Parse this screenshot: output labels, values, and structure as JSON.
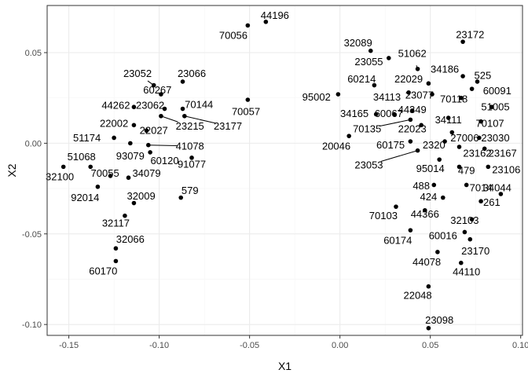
{
  "chart_data": {
    "type": "scatter",
    "xlabel": "X1",
    "ylabel": "X2",
    "xlim": [
      -0.162,
      0.101
    ],
    "ylim": [
      -0.106,
      0.076
    ],
    "x_ticks": [
      -0.15,
      -0.1,
      -0.05,
      0.0,
      0.05,
      0.1
    ],
    "x_tick_labels": [
      "-0.15",
      "-0.10",
      "-0.05",
      "0.00",
      "0.05",
      "0.10"
    ],
    "y_ticks": [
      0.05,
      0.0,
      -0.05,
      -0.1
    ],
    "y_tick_labels": [
      "0.05",
      "0.00",
      "-0.05",
      "-0.10"
    ],
    "grid": true,
    "theme": "bw",
    "colors": {
      "point": "#000000",
      "grid_major": "#ebebeb",
      "grid_minor": "#f5f5f5",
      "panel_border": "#333333"
    },
    "points": [
      {
        "label": "44196",
        "x": -0.041,
        "y": 0.067,
        "lx": -0.036,
        "ly": 0.0705
      },
      {
        "label": "70056",
        "x": -0.051,
        "y": 0.065,
        "lx": -0.059,
        "ly": 0.0595
      },
      {
        "label": "23172",
        "x": 0.068,
        "y": 0.056,
        "lx": 0.072,
        "ly": 0.06
      },
      {
        "label": "32089",
        "x": 0.017,
        "y": 0.051,
        "lx": 0.01,
        "ly": 0.0555
      },
      {
        "label": "23055",
        "x": 0.027,
        "y": 0.047,
        "lx": 0.016,
        "ly": 0.045
      },
      {
        "label": "51062",
        "x": 0.043,
        "y": 0.041,
        "lx": 0.04,
        "ly": 0.0495
      },
      {
        "label": "34186",
        "x": 0.068,
        "y": 0.037,
        "lx": 0.058,
        "ly": 0.041
      },
      {
        "label": "525",
        "x": 0.076,
        "y": 0.034,
        "lx": 0.079,
        "ly": 0.0375
      },
      {
        "label": "60214",
        "x": 0.019,
        "y": 0.032,
        "lx": 0.012,
        "ly": 0.0355
      },
      {
        "label": "22029",
        "x": 0.049,
        "y": 0.033,
        "lx": 0.038,
        "ly": 0.0355
      },
      {
        "label": "60091",
        "x": 0.073,
        "y": 0.03,
        "lx": 0.087,
        "ly": 0.029
      },
      {
        "label": "95002",
        "x": -0.001,
        "y": 0.027,
        "lx": -0.013,
        "ly": 0.0255
      },
      {
        "label": "34113",
        "x": 0.038,
        "y": 0.028,
        "lx": 0.026,
        "ly": 0.0255
      },
      {
        "label": "23077",
        "x": 0.051,
        "y": 0.027,
        "lx": 0.044,
        "ly": 0.0265
      },
      {
        "label": "70118",
        "x": 0.067,
        "y": 0.025,
        "lx": 0.063,
        "ly": 0.0245
      },
      {
        "label": "51005",
        "x": 0.084,
        "y": 0.02,
        "lx": 0.086,
        "ly": 0.02
      },
      {
        "label": "44349",
        "x": 0.04,
        "y": 0.018,
        "lx": 0.04,
        "ly": 0.0185
      },
      {
        "label": "34165",
        "x": 0.02,
        "y": 0.016,
        "lx": 0.008,
        "ly": 0.0165
      },
      {
        "label": "60067",
        "x": 0.03,
        "y": 0.016,
        "lx": 0.027,
        "ly": 0.0165
      },
      {
        "label": "34111",
        "x": 0.06,
        "y": 0.014,
        "lx": 0.06,
        "ly": 0.013
      },
      {
        "label": "70107",
        "x": 0.078,
        "y": 0.012,
        "lx": 0.083,
        "ly": 0.011
      },
      {
        "label": "70135",
        "x": 0.039,
        "y": 0.013,
        "lx": 0.015,
        "ly": 0.008
      },
      {
        "label": "22023",
        "x": 0.045,
        "y": 0.01,
        "lx": 0.04,
        "ly": 0.008
      },
      {
        "label": "20046",
        "x": 0.005,
        "y": 0.004,
        "lx": -0.002,
        "ly": -0.0015
      },
      {
        "label": "27006",
        "x": 0.062,
        "y": 0.006,
        "lx": 0.069,
        "ly": 0.003
      },
      {
        "label": "23030",
        "x": 0.077,
        "y": 0.003,
        "lx": 0.086,
        "ly": 0.003
      },
      {
        "label": "60175",
        "x": 0.039,
        "y": 0.001,
        "lx": 0.028,
        "ly": -0.001
      },
      {
        "label": "2320",
        "x": 0.058,
        "y": 0.001,
        "lx": 0.052,
        "ly": -0.001
      },
      {
        "label": "23162",
        "x": 0.066,
        "y": -0.002,
        "lx": 0.076,
        "ly": -0.0055
      },
      {
        "label": "23167",
        "x": 0.08,
        "y": -0.003,
        "lx": 0.09,
        "ly": -0.0055
      },
      {
        "label": "23053",
        "x": 0.043,
        "y": -0.004,
        "lx": 0.016,
        "ly": -0.012
      },
      {
        "label": "95014",
        "x": 0.055,
        "y": -0.009,
        "lx": 0.05,
        "ly": -0.014
      },
      {
        "label": "23106",
        "x": 0.082,
        "y": -0.013,
        "lx": 0.092,
        "ly": -0.0145
      },
      {
        "label": "479",
        "x": 0.066,
        "y": -0.013,
        "lx": 0.07,
        "ly": -0.015
      },
      {
        "label": "488",
        "x": 0.052,
        "y": -0.023,
        "lx": 0.045,
        "ly": -0.0235
      },
      {
        "label": "7014",
        "x": 0.07,
        "y": -0.023,
        "lx": 0.078,
        "ly": -0.0245
      },
      {
        "label": "34044",
        "x": 0.089,
        "y": -0.028,
        "lx": 0.087,
        "ly": -0.0245
      },
      {
        "label": "424",
        "x": 0.057,
        "y": -0.03,
        "lx": 0.049,
        "ly": -0.0295
      },
      {
        "label": "261",
        "x": 0.078,
        "y": -0.032,
        "lx": 0.084,
        "ly": -0.0325
      },
      {
        "label": "70103",
        "x": 0.031,
        "y": -0.035,
        "lx": 0.024,
        "ly": -0.04
      },
      {
        "label": "44366",
        "x": 0.047,
        "y": -0.037,
        "lx": 0.047,
        "ly": -0.039
      },
      {
        "label": "32103",
        "x": 0.073,
        "y": -0.042,
        "lx": 0.069,
        "ly": -0.0425
      },
      {
        "label": "60174",
        "x": 0.039,
        "y": -0.048,
        "lx": 0.032,
        "ly": -0.0535
      },
      {
        "label": "60016",
        "x": 0.069,
        "y": -0.049,
        "lx": 0.057,
        "ly": -0.051
      },
      {
        "label": "23170",
        "x": 0.072,
        "y": -0.053,
        "lx": 0.075,
        "ly": -0.0595
      },
      {
        "label": "44078",
        "x": 0.054,
        "y": -0.06,
        "lx": 0.048,
        "ly": -0.0655
      },
      {
        "label": "44110",
        "x": 0.067,
        "y": -0.066,
        "lx": 0.07,
        "ly": -0.071
      },
      {
        "label": "22048",
        "x": 0.049,
        "y": -0.079,
        "lx": 0.043,
        "ly": -0.084
      },
      {
        "label": "23098",
        "x": 0.049,
        "y": -0.102,
        "lx": 0.055,
        "ly": -0.0975
      },
      {
        "label": "23052",
        "x": -0.103,
        "y": 0.032,
        "lx": -0.112,
        "ly": 0.0385
      },
      {
        "label": "23066",
        "x": -0.087,
        "y": 0.034,
        "lx": -0.082,
        "ly": 0.0385
      },
      {
        "label": "60267",
        "x": -0.099,
        "y": 0.027,
        "lx": -0.101,
        "ly": 0.0295
      },
      {
        "label": "70057",
        "x": -0.051,
        "y": 0.024,
        "lx": -0.052,
        "ly": 0.0175
      },
      {
        "label": "44262",
        "x": -0.114,
        "y": 0.02,
        "lx": -0.124,
        "ly": 0.021
      },
      {
        "label": "23062",
        "x": -0.097,
        "y": 0.019,
        "lx": -0.105,
        "ly": 0.021
      },
      {
        "label": "70144",
        "x": -0.087,
        "y": 0.019,
        "lx": -0.078,
        "ly": 0.0215
      },
      {
        "label": "23215",
        "x": -0.099,
        "y": 0.015,
        "lx": -0.083,
        "ly": 0.0095
      },
      {
        "label": "23177",
        "x": -0.086,
        "y": 0.015,
        "lx": -0.062,
        "ly": 0.0095
      },
      {
        "label": "22002",
        "x": -0.114,
        "y": 0.01,
        "lx": -0.125,
        "ly": 0.011
      },
      {
        "label": "22027",
        "x": -0.107,
        "y": 0.007,
        "lx": -0.103,
        "ly": 0.007
      },
      {
        "label": "51174",
        "x": -0.125,
        "y": 0.003,
        "lx": -0.14,
        "ly": 0.003
      },
      {
        "label": "93079",
        "x": -0.116,
        "y": 0.0,
        "lx": -0.116,
        "ly": -0.007
      },
      {
        "label": "41078",
        "x": -0.106,
        "y": -0.001,
        "lx": -0.083,
        "ly": -0.0015
      },
      {
        "label": "60120",
        "x": -0.105,
        "y": -0.005,
        "lx": -0.097,
        "ly": -0.0095
      },
      {
        "label": "91077",
        "x": -0.082,
        "y": -0.008,
        "lx": -0.082,
        "ly": -0.0115
      },
      {
        "label": "51068",
        "x": -0.138,
        "y": -0.013,
        "lx": -0.143,
        "ly": -0.0075
      },
      {
        "label": "32100",
        "x": -0.153,
        "y": -0.013,
        "lx": -0.155,
        "ly": -0.0185
      },
      {
        "label": "70055",
        "x": -0.127,
        "y": -0.018,
        "lx": -0.13,
        "ly": -0.0165
      },
      {
        "label": "34079",
        "x": -0.117,
        "y": -0.019,
        "lx": -0.107,
        "ly": -0.0165
      },
      {
        "label": "92014",
        "x": -0.134,
        "y": -0.024,
        "lx": -0.141,
        "ly": -0.03
      },
      {
        "label": "32009",
        "x": -0.114,
        "y": -0.033,
        "lx": -0.11,
        "ly": -0.029
      },
      {
        "label": "579",
        "x": -0.088,
        "y": -0.03,
        "lx": -0.083,
        "ly": -0.026
      },
      {
        "label": "32117",
        "x": -0.119,
        "y": -0.04,
        "lx": -0.124,
        "ly": -0.044
      },
      {
        "label": "32066",
        "x": -0.124,
        "y": -0.058,
        "lx": -0.116,
        "ly": -0.053
      },
      {
        "label": "60170",
        "x": -0.124,
        "y": -0.065,
        "lx": -0.131,
        "ly": -0.0705
      }
    ],
    "connectors": [
      {
        "from": "51062",
        "to_label": "51062"
      },
      {
        "from": "23052",
        "to_label": "23052"
      },
      {
        "from": "23215",
        "to_label": "23215"
      },
      {
        "from": "23177",
        "to_label": "23177"
      },
      {
        "from": "41078",
        "to_label": "41078"
      },
      {
        "from": "70135",
        "to_label": "70135"
      },
      {
        "from": "23053",
        "to_label": "23053"
      },
      {
        "from": "488",
        "to_label": "488"
      }
    ]
  }
}
